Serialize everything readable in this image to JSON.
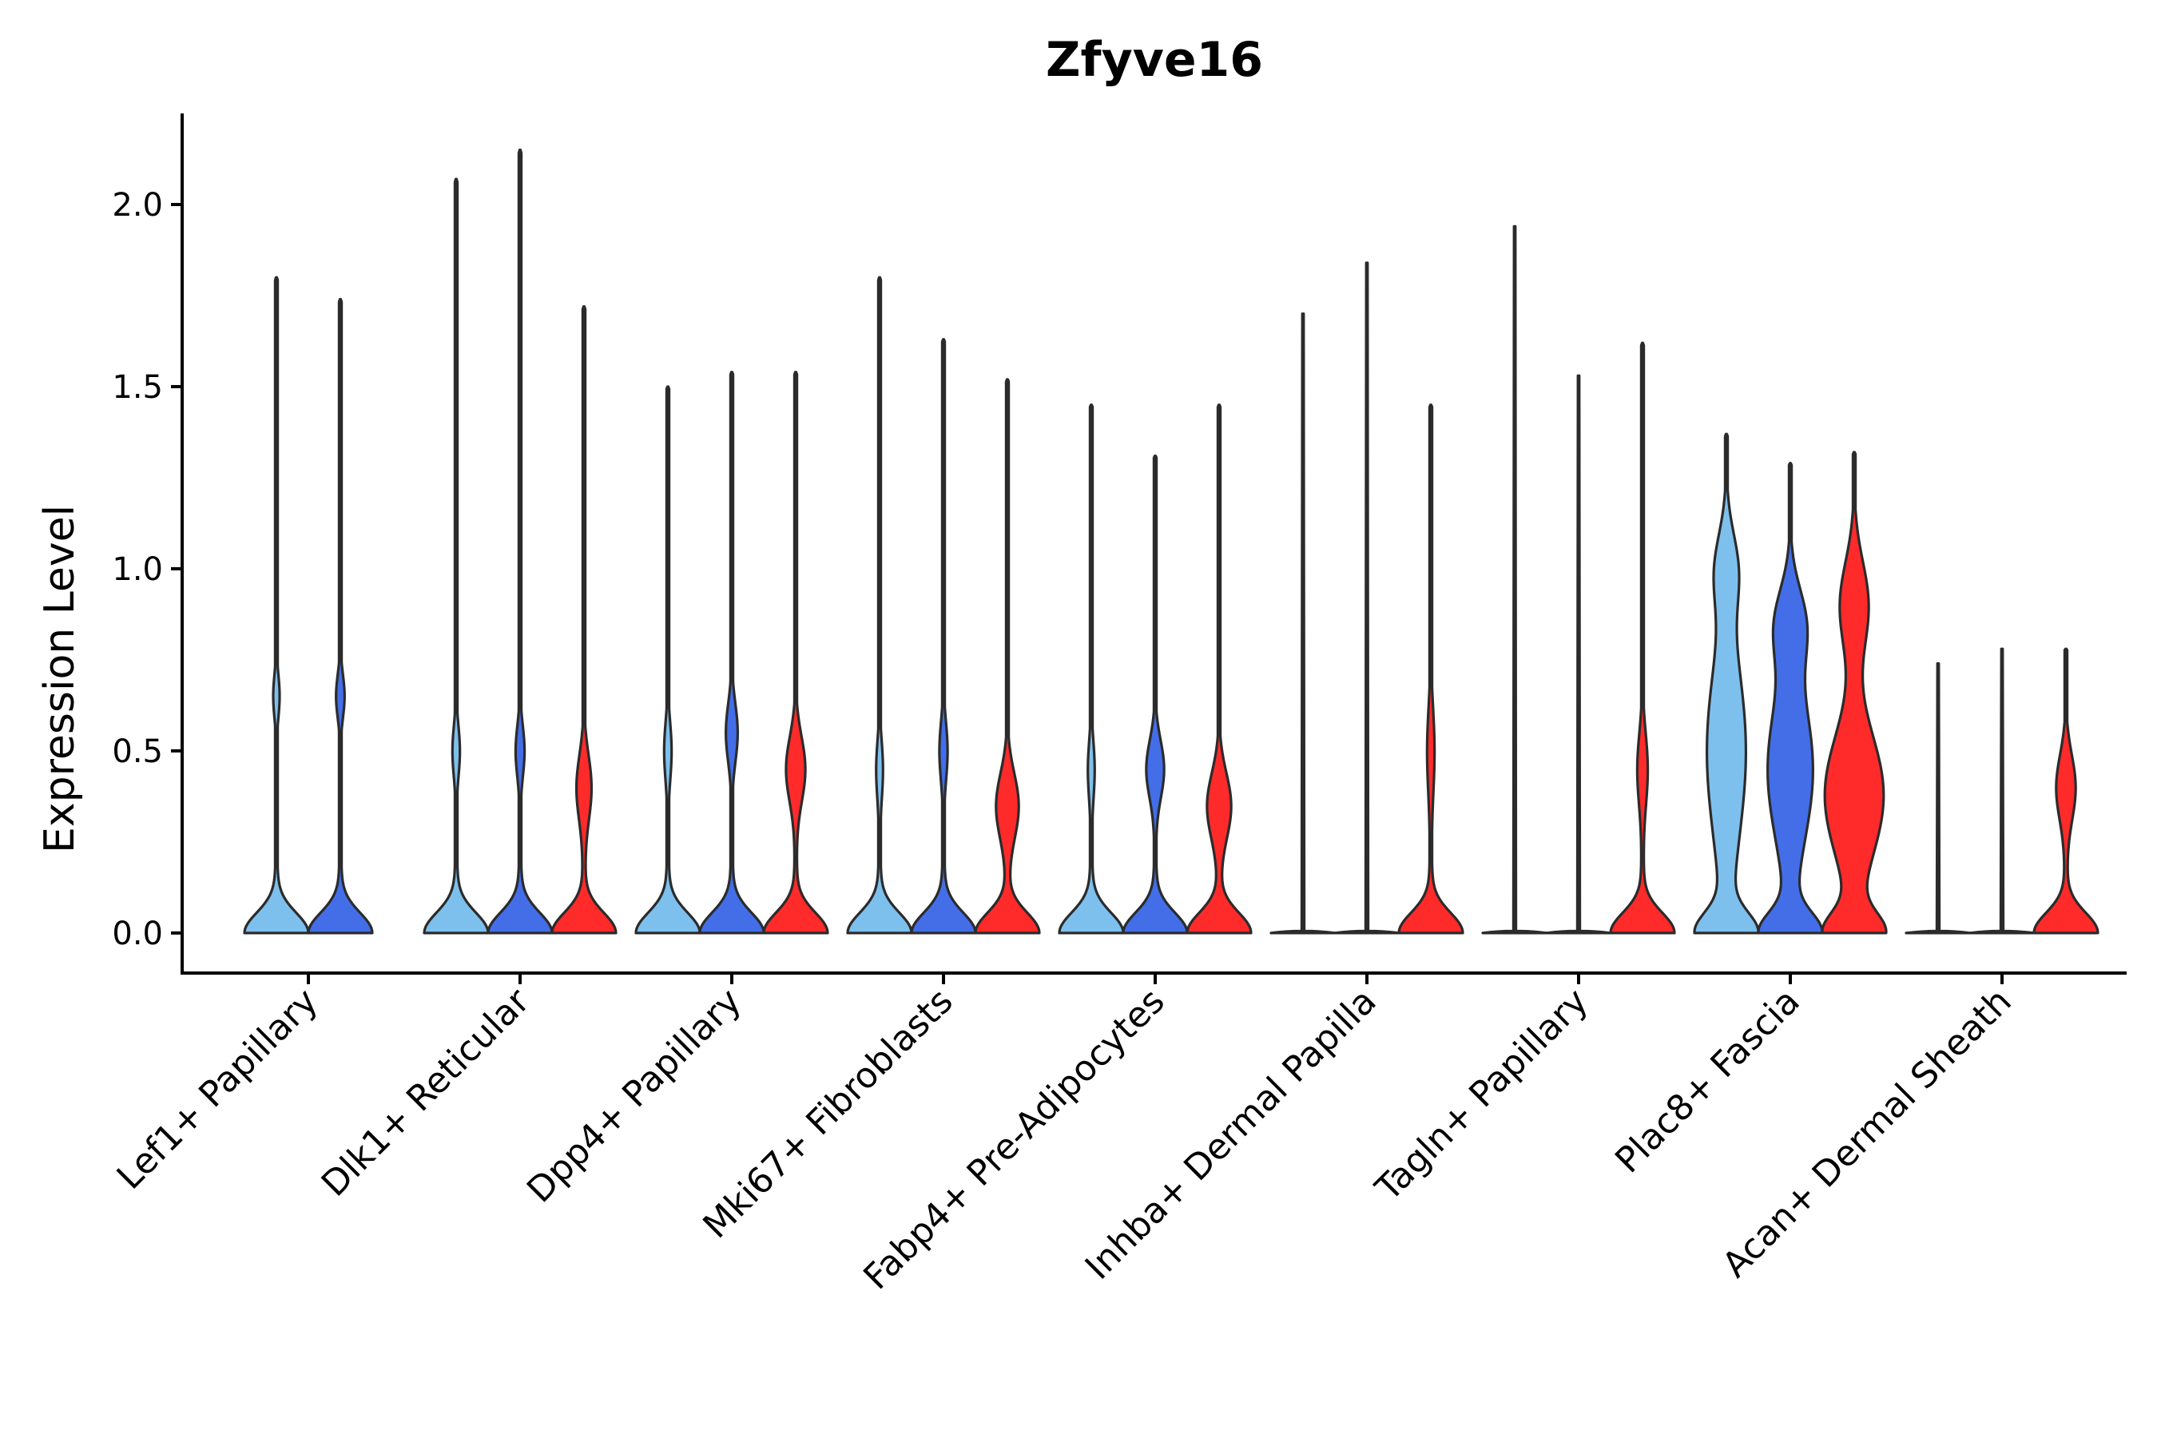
{
  "chart_data": {
    "type": "violin",
    "title": "Zfyve16",
    "xlabel": "",
    "ylabel": "Expression Level",
    "ylim": [
      -0.11,
      2.25
    ],
    "yticks": [
      0.0,
      0.5,
      1.0,
      1.5,
      2.0
    ],
    "ytick_labels": [
      "0.0",
      "0.5",
      "1.0",
      "1.5",
      "2.0"
    ],
    "grid": false,
    "legend": "none",
    "series_colors": [
      "#7ec0ed",
      "#436ee8",
      "#ff2a2a"
    ],
    "categories": [
      "Lef1+ Papillary",
      "Dlk1+ Reticular",
      "Dpp4+ Papillary",
      "Mki67+ Fibroblasts",
      "Fabp4+ Pre-Adipocytes",
      "Inhba+ Dermal Papilla",
      "Tagln+ Papillary",
      "Plac8+ Fascia",
      "Acan+ Dermal Sheath"
    ],
    "violins": [
      {
        "category": 0,
        "series": 0,
        "max": 1.8,
        "zero_width": 0.85,
        "modes": [
          [
            0.65,
            0.09,
            0.06
          ]
        ]
      },
      {
        "category": 0,
        "series": 1,
        "max": 1.74,
        "zero_width": 0.85,
        "modes": [
          [
            0.65,
            0.12,
            0.06
          ]
        ]
      },
      {
        "category": 1,
        "series": 0,
        "max": 2.07,
        "zero_width": 0.82,
        "modes": [
          [
            0.5,
            0.1,
            0.07
          ]
        ]
      },
      {
        "category": 1,
        "series": 1,
        "max": 2.15,
        "zero_width": 0.82,
        "modes": [
          [
            0.5,
            0.12,
            0.07
          ]
        ]
      },
      {
        "category": 1,
        "series": 2,
        "max": 1.72,
        "zero_width": 0.82,
        "modes": [
          [
            0.4,
            0.2,
            0.09
          ]
        ]
      },
      {
        "category": 2,
        "series": 0,
        "max": 1.5,
        "zero_width": 0.82,
        "modes": [
          [
            0.5,
            0.1,
            0.08
          ]
        ]
      },
      {
        "category": 2,
        "series": 1,
        "max": 1.54,
        "zero_width": 0.82,
        "modes": [
          [
            0.55,
            0.16,
            0.08
          ]
        ]
      },
      {
        "category": 2,
        "series": 2,
        "max": 1.54,
        "zero_width": 0.82,
        "modes": [
          [
            0.45,
            0.26,
            0.09
          ]
        ]
      },
      {
        "category": 3,
        "series": 0,
        "max": 1.8,
        "zero_width": 0.82,
        "modes": [
          [
            0.45,
            0.09,
            0.08
          ]
        ]
      },
      {
        "category": 3,
        "series": 1,
        "max": 1.63,
        "zero_width": 0.82,
        "modes": [
          [
            0.5,
            0.11,
            0.08
          ]
        ]
      },
      {
        "category": 3,
        "series": 2,
        "max": 1.52,
        "zero_width": 0.82,
        "modes": [
          [
            0.35,
            0.3,
            0.09
          ]
        ]
      },
      {
        "category": 4,
        "series": 0,
        "max": 1.45,
        "zero_width": 0.82,
        "modes": [
          [
            0.45,
            0.09,
            0.08
          ]
        ]
      },
      {
        "category": 4,
        "series": 1,
        "max": 1.31,
        "zero_width": 0.82,
        "modes": [
          [
            0.45,
            0.24,
            0.08
          ]
        ]
      },
      {
        "category": 4,
        "series": 2,
        "max": 1.45,
        "zero_width": 0.82,
        "modes": [
          [
            0.35,
            0.32,
            0.09
          ]
        ]
      },
      {
        "category": 5,
        "series": 0,
        "max": 1.7,
        "zero_width": 0.82,
        "flat": true,
        "modes": []
      },
      {
        "category": 5,
        "series": 1,
        "max": 1.84,
        "zero_width": 0.82,
        "flat": true,
        "modes": []
      },
      {
        "category": 5,
        "series": 2,
        "max": 1.45,
        "zero_width": 0.82,
        "modes": [
          [
            0.5,
            0.1,
            0.12
          ]
        ]
      },
      {
        "category": 6,
        "series": 0,
        "max": 1.94,
        "zero_width": 0.82,
        "flat": true,
        "modes": []
      },
      {
        "category": 6,
        "series": 1,
        "max": 1.53,
        "zero_width": 0.82,
        "flat": true,
        "modes": []
      },
      {
        "category": 6,
        "series": 2,
        "max": 1.62,
        "zero_width": 0.82,
        "modes": [
          [
            0.45,
            0.14,
            0.1
          ]
        ]
      },
      {
        "category": 7,
        "series": 0,
        "max": 1.37,
        "zero_width": 0.78,
        "modes": [
          [
            0.5,
            0.55,
            0.25
          ],
          [
            1.0,
            0.28,
            0.1
          ]
        ]
      },
      {
        "category": 7,
        "series": 1,
        "max": 1.29,
        "zero_width": 0.78,
        "modes": [
          [
            0.45,
            0.62,
            0.2
          ],
          [
            0.85,
            0.38,
            0.1
          ]
        ]
      },
      {
        "category": 7,
        "series": 2,
        "max": 1.32,
        "zero_width": 0.78,
        "modes": [
          [
            0.38,
            0.82,
            0.17
          ],
          [
            0.9,
            0.4,
            0.12
          ]
        ]
      },
      {
        "category": 8,
        "series": 0,
        "max": 0.74,
        "zero_width": 0.82,
        "flat": true,
        "modes": []
      },
      {
        "category": 8,
        "series": 1,
        "max": 0.78,
        "zero_width": 0.82,
        "flat": true,
        "modes": []
      },
      {
        "category": 8,
        "series": 2,
        "max": 0.78,
        "zero_width": 0.82,
        "modes": [
          [
            0.4,
            0.26,
            0.09
          ]
        ]
      }
    ]
  }
}
